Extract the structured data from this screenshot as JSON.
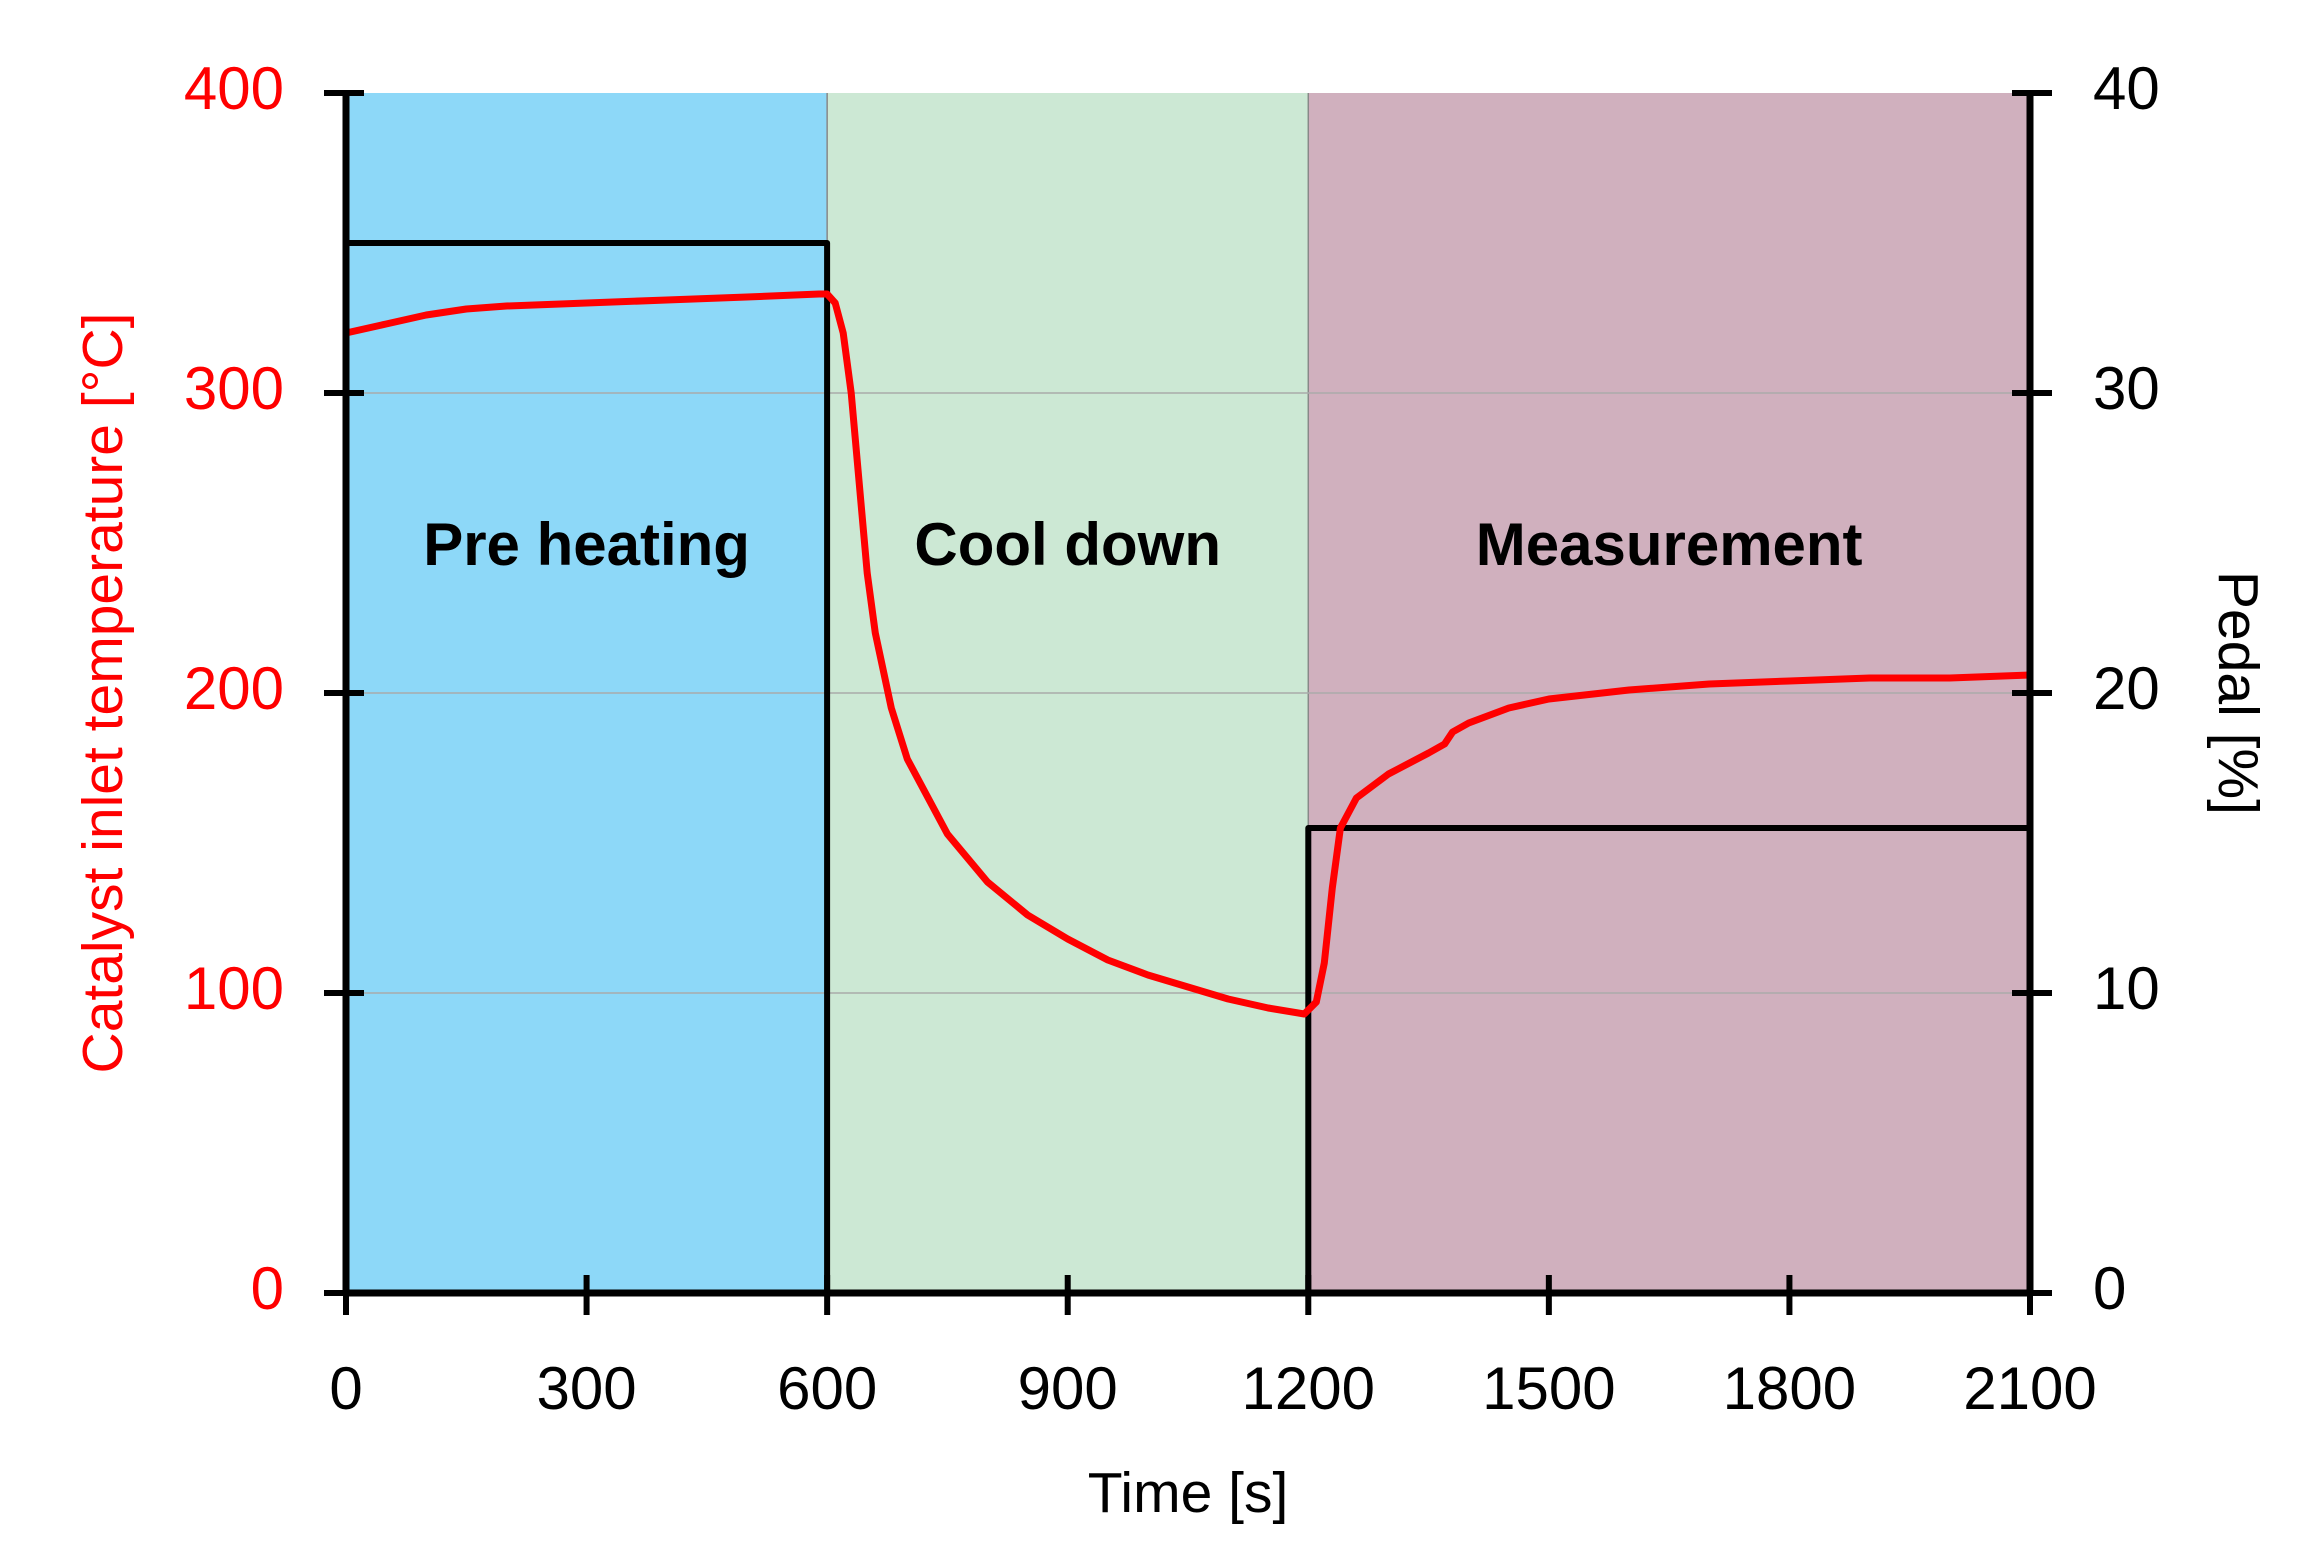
{
  "chart_data": {
    "type": "line",
    "xlabel": "Time [s]",
    "ylabel": "Catalyst inlet temperature [°C]",
    "y2label": "Pedal [%]",
    "xlim": [
      0,
      2100
    ],
    "xticks": [
      0,
      300,
      600,
      900,
      1200,
      1500,
      1800,
      2100
    ],
    "ylim": [
      0,
      400
    ],
    "yticks": [
      0,
      100,
      200,
      300,
      400
    ],
    "y2lim": [
      0,
      40
    ],
    "y2ticks": [
      0,
      10,
      20,
      30,
      40
    ],
    "grid": true,
    "phases": [
      {
        "label": "Pre heating",
        "start": 0,
        "end": 600,
        "color": "#8dd8f8"
      },
      {
        "label": "Cool down",
        "start": 600,
        "end": 1200,
        "color": "#cce8d4"
      },
      {
        "label": "Measurement",
        "start": 1200,
        "end": 2100,
        "color": "#d0b0be"
      }
    ],
    "series": [
      {
        "color": "#000000",
        "axis": "y2",
        "x": [
          0,
          600,
          600,
          1200,
          1200,
          2100
        ],
        "values": [
          35,
          35,
          0,
          0,
          15.5,
          15.5
        ]
      },
      {
        "color": "#ff0000",
        "axis": "y",
        "x": [
          0,
          50,
          100,
          150,
          200,
          300,
          400,
          500,
          590,
          600,
          610,
          620,
          630,
          640,
          650,
          660,
          680,
          700,
          750,
          800,
          850,
          900,
          950,
          1000,
          1050,
          1100,
          1150,
          1195,
          1210,
          1220,
          1230,
          1240,
          1260,
          1300,
          1350,
          1370,
          1380,
          1400,
          1450,
          1500,
          1600,
          1700,
          1800,
          1900,
          2000,
          2100
        ],
        "values": [
          320,
          323,
          326,
          328,
          329,
          330,
          331,
          332,
          333,
          333,
          330,
          320,
          300,
          270,
          240,
          220,
          195,
          178,
          153,
          137,
          126,
          118,
          111,
          106,
          102,
          98,
          95,
          93,
          97,
          110,
          135,
          155,
          165,
          173,
          180,
          183,
          187,
          190,
          195,
          198,
          201,
          203,
          204,
          205,
          205,
          206
        ]
      }
    ]
  }
}
